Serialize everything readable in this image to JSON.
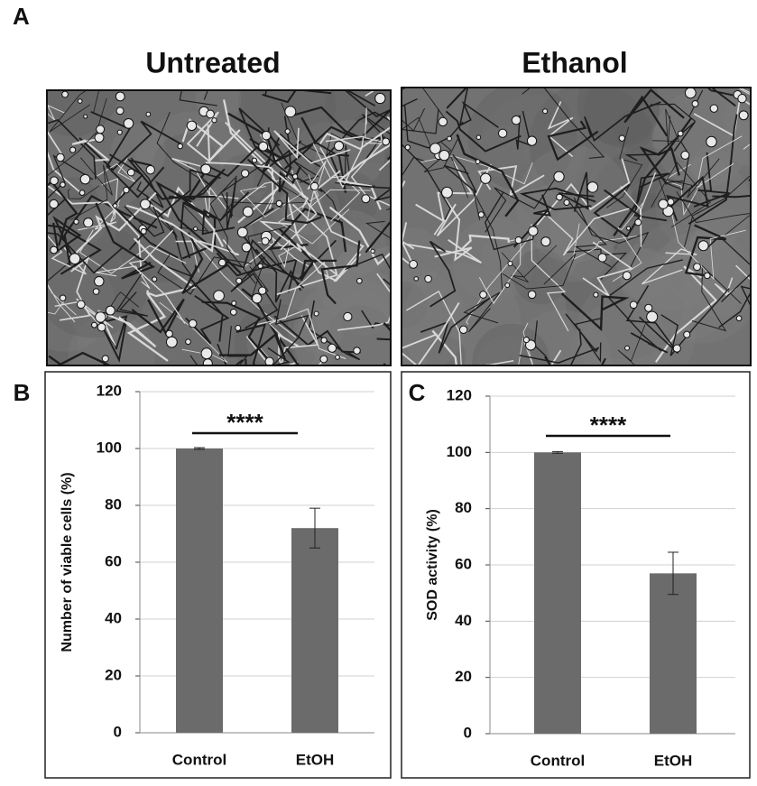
{
  "figure": {
    "panel_label": "A",
    "image_titles": [
      "Untreated",
      "Ethanol"
    ]
  },
  "chart_data": [
    {
      "type": "bar",
      "panel_label": "B",
      "ylabel": "Number of viable cells  (%)",
      "categories": [
        "Control",
        "EtOH"
      ],
      "values": [
        100,
        72
      ],
      "errors": [
        0.3,
        7
      ],
      "color": "#6b6b6b",
      "ylim": [
        0,
        120
      ],
      "yticks": [
        0,
        20,
        40,
        60,
        80,
        100,
        120
      ],
      "grid": true,
      "annotation": "****"
    },
    {
      "type": "bar",
      "panel_label": "C",
      "ylabel": "SOD activity (%)",
      "categories": [
        "Control",
        "EtOH"
      ],
      "values": [
        100,
        57
      ],
      "errors": [
        0.3,
        7.5
      ],
      "color": "#6b6b6b",
      "ylim": [
        0,
        120
      ],
      "yticks": [
        0,
        20,
        40,
        60,
        80,
        100,
        120
      ],
      "grid": true,
      "annotation": "****"
    }
  ]
}
